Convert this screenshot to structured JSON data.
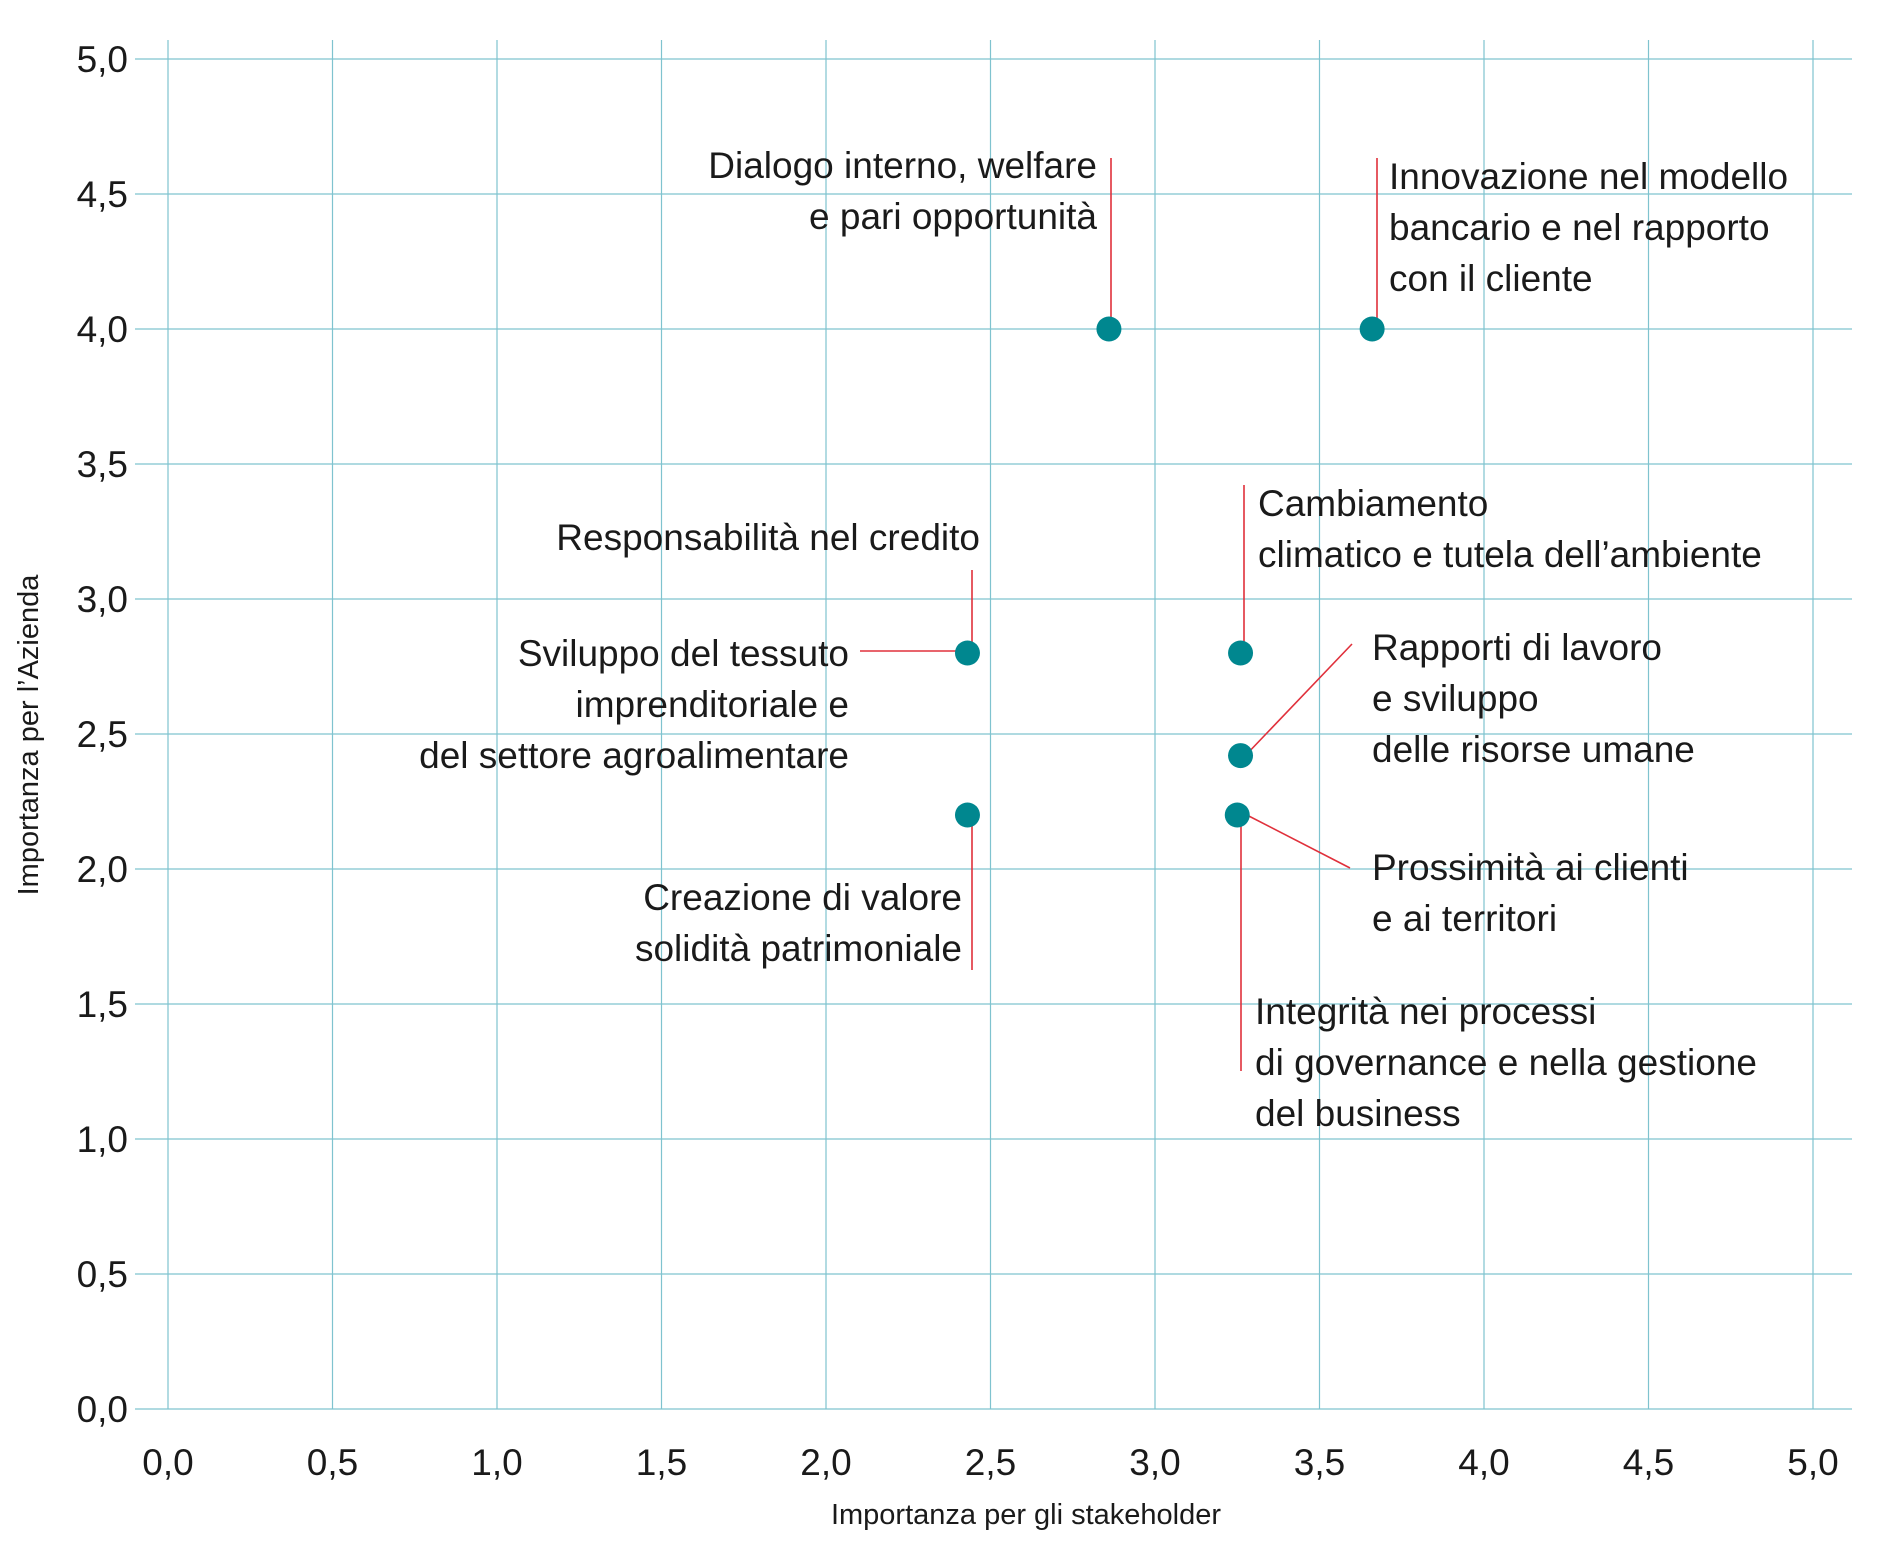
{
  "chart_data": {
    "type": "scatter",
    "xlabel": "Importanza per gli stakeholder",
    "ylabel": "Importanza per l’Azienda",
    "xlim": [
      0,
      5
    ],
    "ylim": [
      0,
      5
    ],
    "x_ticks": [
      "0,0",
      "0,5",
      "1,0",
      "1,5",
      "2,0",
      "2,5",
      "3,0",
      "3,5",
      "4,0",
      "4,5",
      "5,0"
    ],
    "y_ticks": [
      "0,0",
      "0,5",
      "1,0",
      "1,5",
      "2,0",
      "2,5",
      "3,0",
      "3,5",
      "4,0",
      "4,5",
      "5,0"
    ],
    "grid": true,
    "colors": {
      "point": "#00878f",
      "leader": "#e0303b",
      "grid": "#7fc3cf"
    },
    "points": [
      {
        "x": 2.86,
        "y": 4.0,
        "label": [
          "Dialogo interno, welfare",
          "e pari opportunità"
        ]
      },
      {
        "x": 3.66,
        "y": 4.0,
        "label": [
          "Innovazione nel modello",
          "bancario e nel rapporto",
          "con il cliente"
        ]
      },
      {
        "x": 2.43,
        "y": 2.8,
        "label": [
          "Responsabilità nel credito"
        ]
      },
      {
        "x": 2.43,
        "y": 2.8,
        "label": [
          "Sviluppo del tessuto",
          "imprenditoriale e",
          "del settore agroalimentare"
        ]
      },
      {
        "x": 3.26,
        "y": 2.8,
        "label": [
          "Cambiamento",
          "climatico e tutela dell’ambiente"
        ]
      },
      {
        "x": 3.26,
        "y": 2.42,
        "label": [
          "Rapporti di lavoro",
          "e sviluppo",
          "delle risorse umane"
        ]
      },
      {
        "x": 2.43,
        "y": 2.2,
        "label": [
          "Creazione di valore",
          "solidità patrimoniale"
        ]
      },
      {
        "x": 3.25,
        "y": 2.2,
        "label": [
          "Prossimità ai clienti",
          "e ai territori"
        ]
      },
      {
        "x": 3.25,
        "y": 2.2,
        "label": [
          "Integrità nei processi",
          "di governance e nella gestione",
          "del business"
        ]
      }
    ]
  }
}
